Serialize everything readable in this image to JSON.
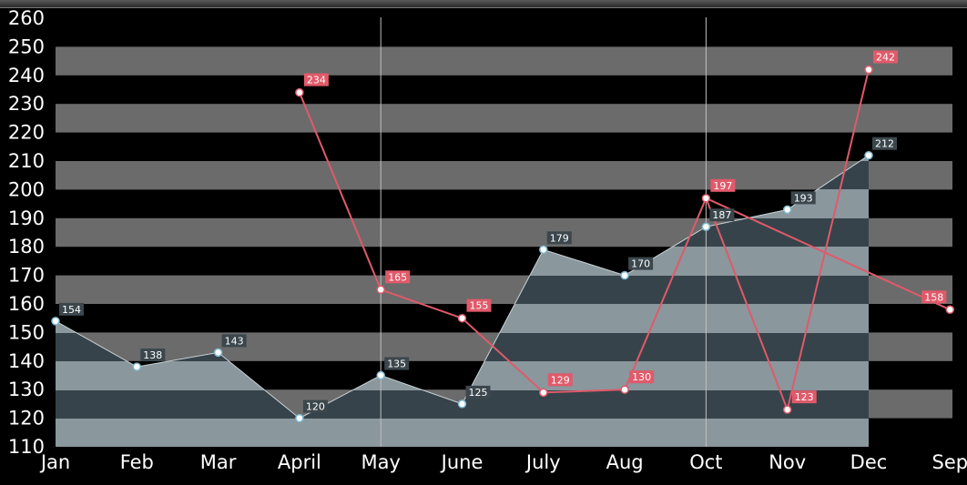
{
  "chart_data": {
    "type": "line",
    "categories": [
      "Jan",
      "Feb",
      "Mar",
      "April",
      "May",
      "June",
      "July",
      "Aug",
      "Oct",
      "Nov",
      "Dec",
      "Sep"
    ],
    "ylim": [
      110,
      260
    ],
    "yticks": [
      110,
      120,
      130,
      140,
      150,
      160,
      170,
      180,
      190,
      200,
      210,
      220,
      230,
      240,
      250,
      260
    ],
    "series": [
      {
        "kind": "area",
        "color": "#7f8f96",
        "label_bg": "#3b474d",
        "values": [
          154,
          138,
          143,
          120,
          135,
          125,
          179,
          170,
          187,
          193,
          212,
          null
        ]
      },
      {
        "kind": "line",
        "color": "#e05a6a",
        "label_bg": "#e05a6a",
        "values": [
          null,
          null,
          null,
          234,
          165,
          155,
          129,
          130,
          197,
          123,
          242,
          158
        ]
      }
    ],
    "secondary_path_order": [
      3,
      4,
      5,
      6,
      7,
      8,
      11,
      8,
      9,
      10
    ],
    "colors": {
      "background": "#000000",
      "band_gray": "#6b6b6b",
      "area_fill_above": "#8a979d",
      "area_fill_below": "#36434a",
      "vertical_gridline": "#bfbfbf"
    },
    "vertical_gridlines_at": [
      "May",
      "Oct"
    ],
    "grid": "alternating horizontal bands"
  }
}
